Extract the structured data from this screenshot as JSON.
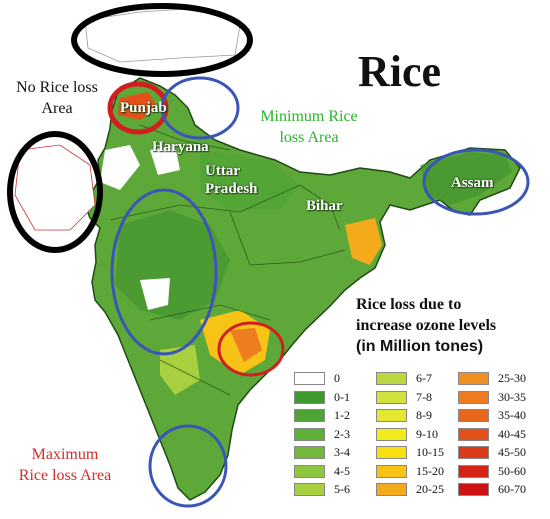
{
  "title": "Rice",
  "annotations": {
    "no_loss": "No Rice loss\nArea",
    "minimum_loss": "Minimum Rice\nloss Area",
    "maximum_loss": "Maximum\nRice loss Area"
  },
  "state_labels": {
    "punjab": "Punjab",
    "haryana": "Haryana",
    "uttar_pradesh": "Uttar\nPradesh",
    "bihar": "Bihar",
    "assam": "Assam"
  },
  "legend": {
    "title": "Rice loss due to\nincrease ozone levels",
    "unit": "(in Million tones)",
    "items": [
      {
        "label": "0",
        "color": "#ffffff"
      },
      {
        "label": "0-1",
        "color": "#3f9a2e"
      },
      {
        "label": "1-2",
        "color": "#4ea535"
      },
      {
        "label": "2-3",
        "color": "#5fae38"
      },
      {
        "label": "3-4",
        "color": "#74b83b"
      },
      {
        "label": "4-5",
        "color": "#8ec63f"
      },
      {
        "label": "5-6",
        "color": "#a6d03f"
      },
      {
        "label": "6-7",
        "color": "#bcd840"
      },
      {
        "label": "7-8",
        "color": "#d2e23c"
      },
      {
        "label": "8-9",
        "color": "#e4e832"
      },
      {
        "label": "9-10",
        "color": "#f2ec1c"
      },
      {
        "label": "10-15",
        "color": "#f7df10"
      },
      {
        "label": "15-20",
        "color": "#f6c316"
      },
      {
        "label": "20-25",
        "color": "#f3ab1c"
      },
      {
        "label": "25-30",
        "color": "#f09022"
      },
      {
        "label": "30-35",
        "color": "#ed7d1f"
      },
      {
        "label": "35-40",
        "color": "#e8661c"
      },
      {
        "label": "40-45",
        "color": "#e4501a"
      },
      {
        "label": "45-50",
        "color": "#dc3b18"
      },
      {
        "label": "50-60",
        "color": "#d42416"
      },
      {
        "label": "60-70",
        "color": "#cc1212"
      }
    ]
  },
  "colors": {
    "map_base": "#5ea83a",
    "map_dark": "#3e8f2c",
    "boundary": "#1f4a12",
    "high_loss": "#f3ab1c",
    "circle_black": "#000000",
    "circle_red": "#d11f1f",
    "circle_blue": "#3a55b8",
    "minimum_text": "#2ab52a",
    "maximum_text": "#d42b2b"
  }
}
